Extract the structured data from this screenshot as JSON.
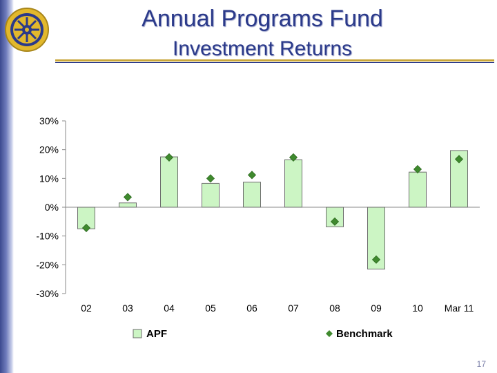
{
  "slide": {
    "title": "Annual Programs Fund",
    "subtitle": "Investment Returns",
    "page_number": "17",
    "colors": {
      "title": "#2b3a8a",
      "accent_rule": "#c9a63a",
      "bar_fill": "#ccf5c4",
      "bar_stroke": "#6d6d6d",
      "marker": "#3f8a2e"
    },
    "logo": "rotary-wheel-icon"
  },
  "chart_data": {
    "type": "bar",
    "categories": [
      "02",
      "03",
      "04",
      "05",
      "06",
      "07",
      "08",
      "09",
      "10",
      "Mar 11"
    ],
    "series": [
      {
        "name": "APF",
        "kind": "bar",
        "values": [
          -7.5,
          1.5,
          17.5,
          8.3,
          8.7,
          16.5,
          -6.8,
          -21.5,
          12.2,
          19.7
        ]
      },
      {
        "name": "Benchmark",
        "kind": "marker",
        "values": [
          -7.2,
          3.5,
          17.3,
          10.0,
          11.2,
          17.3,
          -5.0,
          -18.2,
          13.2,
          16.7
        ]
      }
    ],
    "ylim": [
      -30,
      30
    ],
    "yticks": [
      30,
      20,
      10,
      0,
      -10,
      -20,
      -30
    ],
    "ytick_labels": [
      "30%",
      "20%",
      "10%",
      "0%",
      "-10%",
      "-20%",
      "-30%"
    ],
    "legend_position": "bottom",
    "grid": false
  }
}
